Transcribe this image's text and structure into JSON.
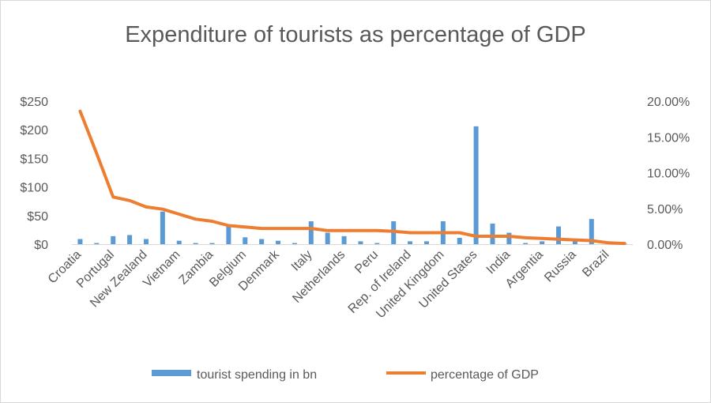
{
  "chart_data": {
    "type": "bar",
    "title": "Expenditure of tourists as percentage of GDP",
    "xlabel": "",
    "ylabel": "",
    "ylim": [
      0,
      250
    ],
    "y2lim": [
      0,
      0.2
    ],
    "y_ticks": [
      "$0",
      "$50",
      "$100",
      "$150",
      "$200",
      "$250"
    ],
    "y2_ticks": [
      "0.00%",
      "5.00%",
      "10.00%",
      "15.00%",
      "20.00%"
    ],
    "categories": [
      "Croatia",
      "",
      "Portugal",
      "",
      "New Zealand",
      "",
      "Vietnam",
      "",
      "Zambia",
      "",
      "Belgium",
      "",
      "Denmark",
      "",
      "Italy",
      "",
      "Netherlands",
      "",
      "Peru",
      "",
      "Rep. of Ireland",
      "",
      "United Kingdom",
      "",
      "United States",
      "",
      "India",
      "",
      "Argentia",
      "",
      "Russia",
      "",
      "Brazil",
      ""
    ],
    "series": [
      {
        "name": "tourist spending in bn",
        "type": "bar",
        "axis": "left",
        "color": "#5b9bd5",
        "values": [
          9,
          2,
          14,
          16,
          9,
          57,
          6,
          2,
          2,
          31,
          12,
          9,
          6,
          2,
          40,
          20,
          14,
          5,
          2,
          40,
          5,
          5,
          40,
          11,
          206,
          36,
          20,
          2,
          5,
          31,
          6,
          44,
          2,
          1
        ]
      },
      {
        "name": "percentage of GDP",
        "type": "line",
        "axis": "right",
        "color": "#ed7d31",
        "values": [
          0.186,
          0.127,
          0.066,
          0.061,
          0.052,
          0.049,
          0.042,
          0.035,
          0.032,
          0.026,
          0.024,
          0.022,
          0.022,
          0.022,
          0.022,
          0.019,
          0.019,
          0.019,
          0.019,
          0.018,
          0.016,
          0.016,
          0.016,
          0.016,
          0.011,
          0.011,
          0.011,
          0.009,
          0.008,
          0.007,
          0.006,
          0.005,
          0.002,
          0.001
        ]
      }
    ],
    "grid": false,
    "legend": "bottom"
  }
}
